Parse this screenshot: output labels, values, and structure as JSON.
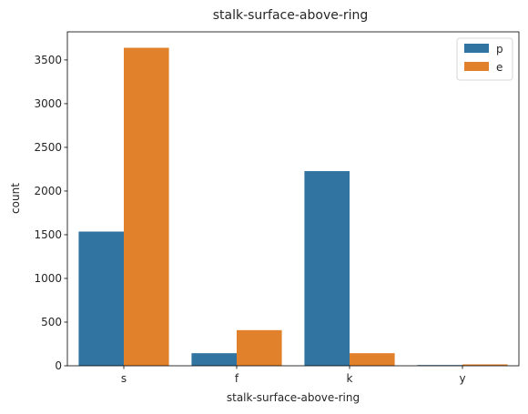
{
  "chart_data": {
    "type": "bar",
    "title": "stalk-surface-above-ring",
    "xlabel": "stalk-surface-above-ring",
    "ylabel": "count",
    "categories": [
      "s",
      "f",
      "k",
      "y"
    ],
    "series": [
      {
        "name": "p",
        "color": "#3274a1",
        "values": [
          1536,
          144,
          2228,
          8
        ]
      },
      {
        "name": "e",
        "color": "#e1812c",
        "values": [
          3640,
          408,
          144,
          16
        ]
      }
    ],
    "ylim": [
      0,
      3822
    ],
    "yticks": [
      0,
      500,
      1000,
      1500,
      2000,
      2500,
      3000,
      3500
    ],
    "legend_position": "top-right",
    "grid": false
  }
}
